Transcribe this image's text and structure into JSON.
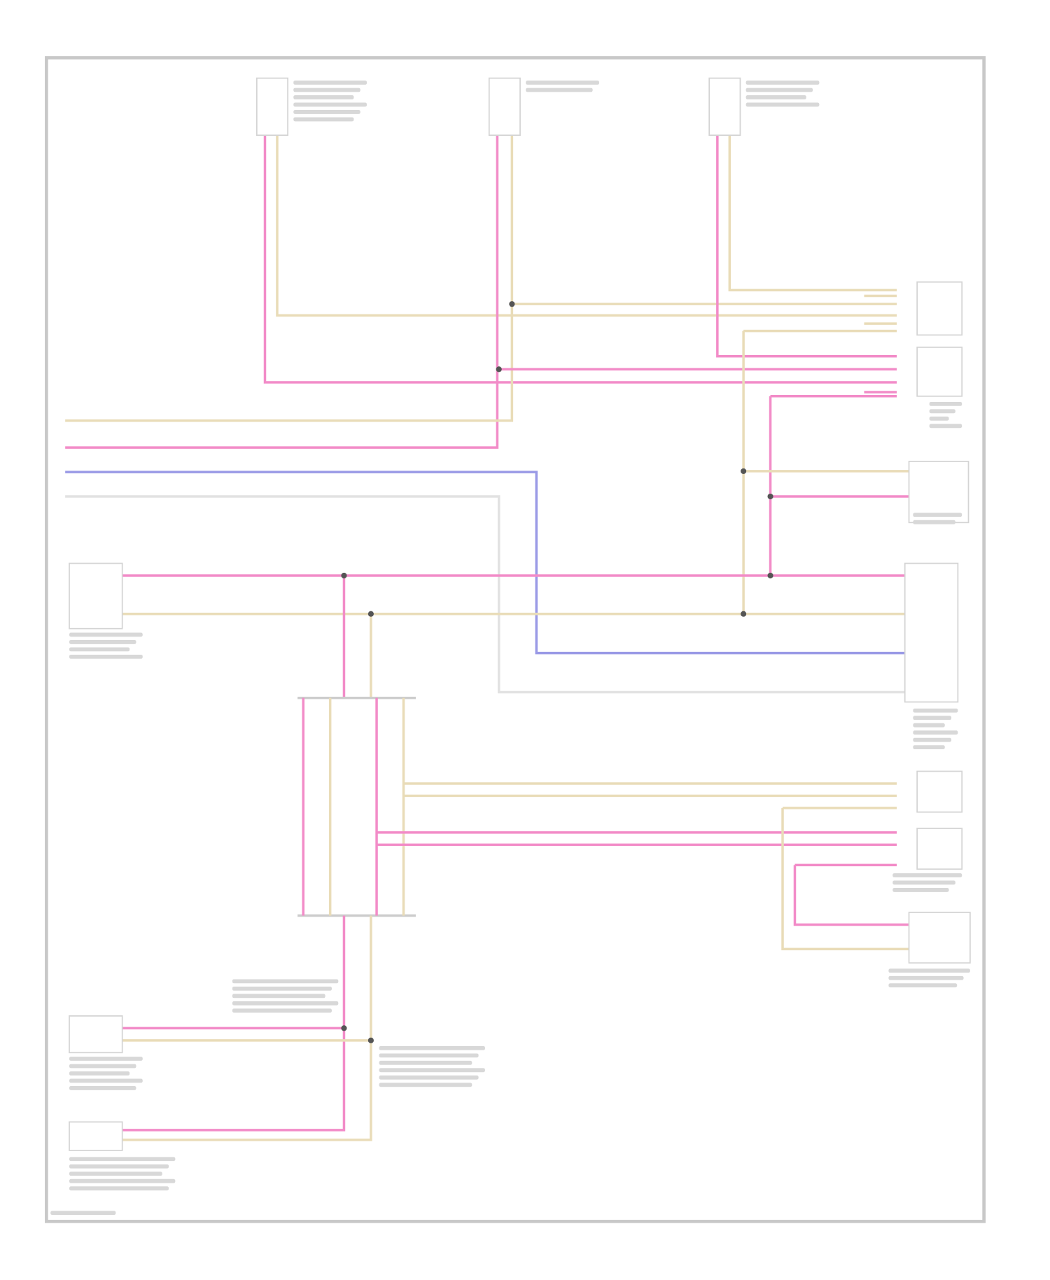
{
  "diagram": {
    "wire_colors": {
      "pink": "#f28cc8",
      "tan": "#e9dcb8",
      "blue": "#9a9ae6",
      "gray": "#e2e2e2"
    },
    "frame_color": "#c8c8c8"
  }
}
